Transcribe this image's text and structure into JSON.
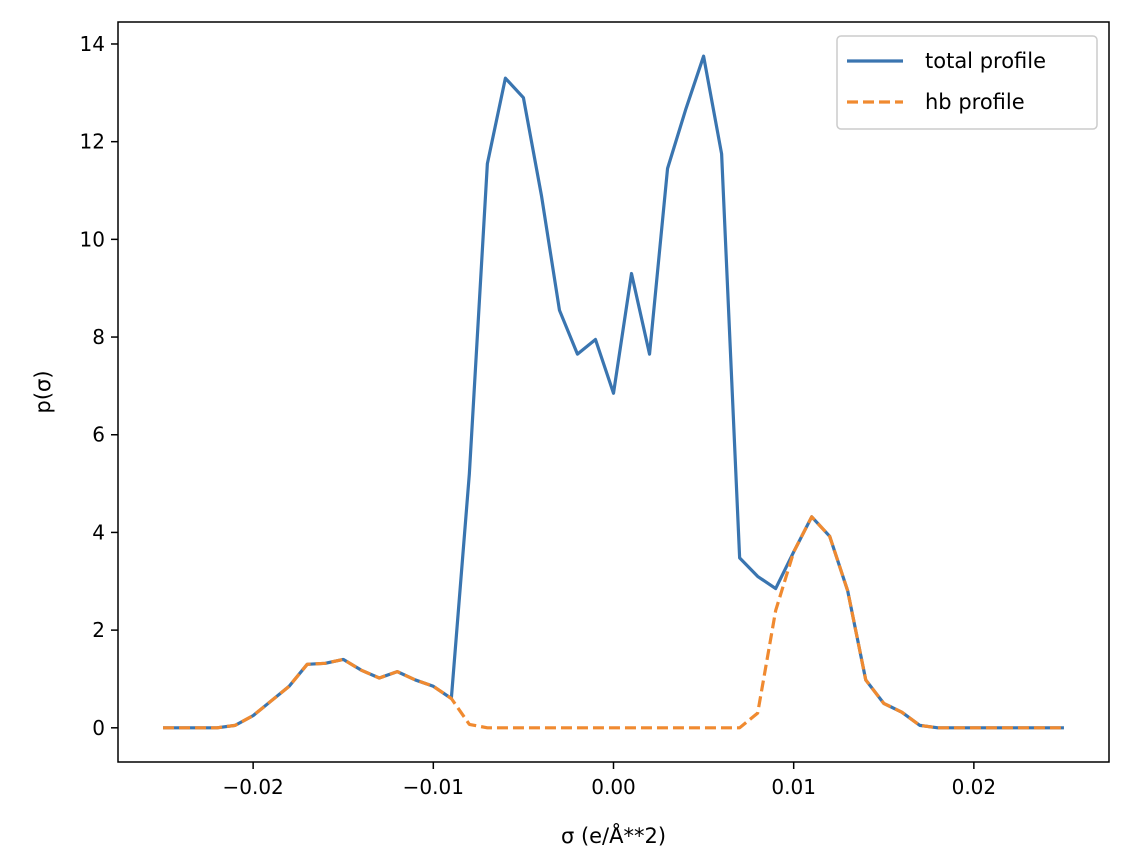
{
  "chart_data": {
    "type": "line",
    "title": "",
    "xlabel": "σ (e/Å**2)",
    "ylabel": "p(σ)",
    "xlim": [
      -0.0275,
      0.0275
    ],
    "ylim": [
      -0.7,
      14.45
    ],
    "xticks": [
      -0.02,
      -0.01,
      0.0,
      0.01,
      0.02
    ],
    "xtick_labels": [
      "−0.02",
      "−0.01",
      "0.00",
      "0.01",
      "0.02"
    ],
    "yticks": [
      0,
      2,
      4,
      6,
      8,
      10,
      12,
      14
    ],
    "ytick_labels": [
      "0",
      "2",
      "4",
      "6",
      "8",
      "10",
      "12",
      "14"
    ],
    "grid": false,
    "legend_position": "top-right",
    "x": [
      -0.025,
      -0.024,
      -0.023,
      -0.022,
      -0.021,
      -0.02,
      -0.019,
      -0.018,
      -0.017,
      -0.016,
      -0.015,
      -0.014,
      -0.013,
      -0.012,
      -0.011,
      -0.01,
      -0.009,
      -0.008,
      -0.007,
      -0.006,
      -0.005,
      -0.004,
      -0.003,
      -0.002,
      -0.001,
      0.0,
      0.001,
      0.002,
      0.003,
      0.004,
      0.005,
      0.006,
      0.007,
      0.008,
      0.009,
      0.01,
      0.011,
      0.012,
      0.013,
      0.014,
      0.015,
      0.016,
      0.017,
      0.018,
      0.019,
      0.02,
      0.021,
      0.022,
      0.023,
      0.024,
      0.025
    ],
    "series": [
      {
        "name": "total profile",
        "color": "#3a75b0",
        "dash": "solid",
        "values": [
          0,
          0,
          0,
          0,
          0.05,
          0.25,
          0.55,
          0.85,
          1.3,
          1.32,
          1.4,
          1.18,
          1.02,
          1.15,
          0.98,
          0.85,
          0.6,
          5.2,
          11.55,
          13.3,
          12.9,
          10.9,
          8.55,
          7.65,
          7.95,
          6.85,
          9.3,
          7.65,
          11.45,
          12.65,
          13.75,
          11.75,
          3.48,
          3.1,
          2.85,
          3.6,
          4.32,
          3.92,
          2.8,
          0.98,
          0.5,
          0.32,
          0.05,
          0,
          0,
          0,
          0,
          0,
          0,
          0,
          0
        ]
      },
      {
        "name": "hb profile",
        "color": "#f08a30",
        "dash": "dashed",
        "values": [
          0,
          0,
          0,
          0,
          0.05,
          0.25,
          0.55,
          0.85,
          1.3,
          1.32,
          1.4,
          1.18,
          1.02,
          1.15,
          0.98,
          0.85,
          0.6,
          0.07,
          0,
          0,
          0,
          0,
          0,
          0,
          0,
          0,
          0,
          0,
          0,
          0,
          0,
          0,
          0,
          0.3,
          2.4,
          3.6,
          4.32,
          3.92,
          2.8,
          0.98,
          0.5,
          0.32,
          0.05,
          0,
          0,
          0,
          0,
          0,
          0,
          0,
          0
        ]
      }
    ]
  }
}
